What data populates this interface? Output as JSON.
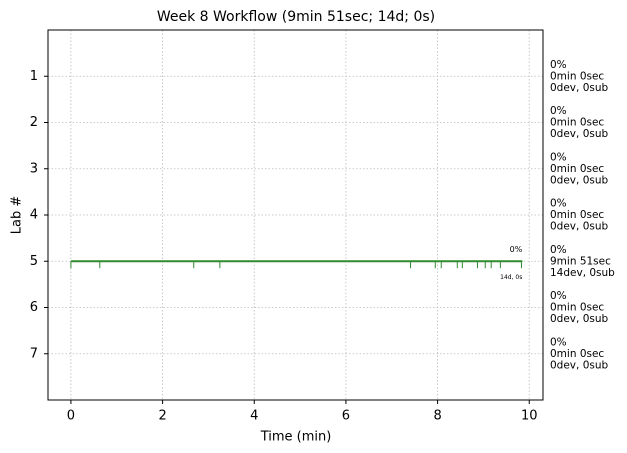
{
  "chart_data": {
    "type": "line",
    "title": "Week 8 Workflow (9min 51sec; 14d; 0s)",
    "xlabel": "Time (min)",
    "ylabel": "Lab #",
    "xlim": [
      -0.5,
      10.3
    ],
    "ylim": [
      8,
      0
    ],
    "xticks": [
      0,
      2,
      4,
      6,
      8,
      10
    ],
    "yticks": [
      1,
      2,
      3,
      4,
      5,
      6,
      7
    ],
    "grid": true,
    "series": [
      {
        "color": "#2e8b2e",
        "x": [
          0,
          9.85
        ],
        "values": [
          5,
          5
        ],
        "submissions": [
          0,
          0.63,
          2.68,
          3.25,
          7.41,
          7.95,
          8.08,
          8.43,
          8.54,
          8.87,
          9.04,
          9.17,
          9.37,
          9.83
        ],
        "end_label": "0%",
        "end_sublabel": "14d, 0s"
      }
    ],
    "labs": [
      {
        "color": "#b22222",
        "lines": [
          "0%",
          "0min 0sec",
          "0dev, 0sub"
        ]
      },
      {
        "color": "#4b0082",
        "lines": [
          "0%",
          "0min 0sec",
          "0dev, 0sub"
        ]
      },
      {
        "color": "#191970",
        "lines": [
          "0%",
          "0min 0sec",
          "0dev, 0sub"
        ]
      },
      {
        "color": "#2a9fd8",
        "lines": [
          "0%",
          "0min 0sec",
          "0dev, 0sub"
        ]
      },
      {
        "color": "#2e8b2e",
        "lines": [
          "0%",
          "9min 51sec",
          "14dev, 0sub"
        ]
      },
      {
        "color": "#e0600a",
        "lines": [
          "0%",
          "0min 0sec",
          "0dev, 0sub"
        ]
      },
      {
        "color": "#000000",
        "lines": [
          "0%",
          "0min 0sec",
          "0dev, 0sub"
        ]
      }
    ]
  }
}
